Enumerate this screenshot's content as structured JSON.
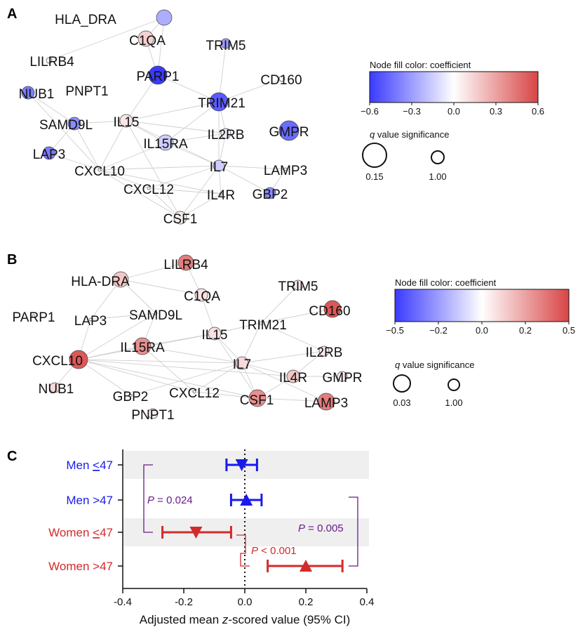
{
  "chart_data": [
    {
      "panel": "A",
      "type": "network",
      "legend": {
        "color_title": "Node fill color: coefficient",
        "color_ticks": [
          "−0.6",
          "−0.3",
          "0.0",
          "0.3",
          "0.6"
        ],
        "color_range": [
          -0.6,
          0.6
        ],
        "size_title": "value significance",
        "size_title_italic": "q",
        "size_ticks": [
          "0.15",
          "1.00"
        ]
      },
      "nodes": [
        {
          "label": "HLA_DRA",
          "coef": -0.25
        },
        {
          "label": "C1QA",
          "coef": 0.15
        },
        {
          "label": "TRIM5",
          "coef": -0.3
        },
        {
          "label": "LILRB4",
          "coef": 0.02
        },
        {
          "label": "PARP1",
          "coef": -0.6
        },
        {
          "label": "CD160",
          "coef": 0.02
        },
        {
          "label": "NUB1",
          "coef": -0.4
        },
        {
          "label": "PNPT1",
          "coef": 0.0
        },
        {
          "label": "TRIM21",
          "coef": -0.5
        },
        {
          "label": "SAMD9L",
          "coef": -0.35
        },
        {
          "label": "IL15",
          "coef": 0.08
        },
        {
          "label": "IL2RB",
          "coef": -0.05
        },
        {
          "label": "GMPR",
          "coef": -0.45
        },
        {
          "label": "IL15RA",
          "coef": -0.15
        },
        {
          "label": "LAP3",
          "coef": -0.4
        },
        {
          "label": "CXCL10",
          "coef": 0.0
        },
        {
          "label": "IL7",
          "coef": -0.15
        },
        {
          "label": "LAMP3",
          "coef": 0.0
        },
        {
          "label": "CXCL12",
          "coef": 0.0
        },
        {
          "label": "IL4R",
          "coef": 0.0
        },
        {
          "label": "GBP2",
          "coef": -0.35
        },
        {
          "label": "CSF1",
          "coef": 0.05
        }
      ]
    },
    {
      "panel": "B",
      "type": "network",
      "legend": {
        "color_title": "Node fill color: coefficient",
        "color_ticks": [
          "−0.5",
          "−0.2",
          "0.0",
          "0.2",
          "0.5"
        ],
        "color_range": [
          -0.5,
          0.5
        ],
        "size_title": "value significance",
        "size_title_italic": "q",
        "size_ticks": [
          "0.03",
          "1.00"
        ]
      },
      "nodes": [
        {
          "label": "LILRB4",
          "coef": 0.35
        },
        {
          "label": "HLA-DRA",
          "coef": 0.15
        },
        {
          "label": "C1QA",
          "coef": 0.08
        },
        {
          "label": "TRIM5",
          "coef": 0.05
        },
        {
          "label": "CD160",
          "coef": 0.45
        },
        {
          "label": "PARP1",
          "coef": 0.0
        },
        {
          "label": "LAP3",
          "coef": 0.0
        },
        {
          "label": "SAMD9L",
          "coef": 0.0
        },
        {
          "label": "TRIM21",
          "coef": 0.0
        },
        {
          "label": "IL15",
          "coef": 0.08
        },
        {
          "label": "CXCL10",
          "coef": 0.45
        },
        {
          "label": "IL15RA",
          "coef": 0.3
        },
        {
          "label": "IL2RB",
          "coef": 0.05
        },
        {
          "label": "IL7",
          "coef": 0.1
        },
        {
          "label": "IL4R",
          "coef": 0.15
        },
        {
          "label": "GMPR",
          "coef": 0.05
        },
        {
          "label": "NUB1",
          "coef": 0.1
        },
        {
          "label": "GBP2",
          "coef": 0.05
        },
        {
          "label": "CXCL12",
          "coef": 0.0
        },
        {
          "label": "CSF1",
          "coef": 0.3
        },
        {
          "label": "LAMP3",
          "coef": 0.35
        },
        {
          "label": "PNPT1",
          "coef": 0.05
        }
      ]
    },
    {
      "panel": "C",
      "type": "forest",
      "xlabel_pre": "Adjusted mean ",
      "xlabel_italic": "z",
      "xlabel_post": "-scored value (95% CI)",
      "xlim": [
        -0.4,
        0.4
      ],
      "xticks": [
        "-0.4",
        "-0.2",
        "0.0",
        "0.2",
        "0.4"
      ],
      "xtick_values": [
        -0.4,
        -0.2,
        0.0,
        0.2,
        0.4
      ],
      "reference_line": 0.0,
      "rows": [
        {
          "label_pre": "Men ",
          "label_under": "<",
          "label_post": "47",
          "color": "#1a1aee",
          "mean": -0.01,
          "low": -0.06,
          "high": 0.04,
          "marker": "triangle-down",
          "shaded": true
        },
        {
          "label_pre": "Men >47",
          "label_under": "",
          "label_post": "",
          "color": "#1a1aee",
          "mean": 0.005,
          "low": -0.045,
          "high": 0.055,
          "marker": "triangle-up",
          "shaded": false
        },
        {
          "label_pre": "Women ",
          "label_under": "<",
          "label_post": "47",
          "color": "#d42a2a",
          "mean": -0.16,
          "low": -0.27,
          "high": -0.045,
          "marker": "triangle-down",
          "shaded": true
        },
        {
          "label_pre": "Women >47",
          "label_under": "",
          "label_post": "",
          "color": "#d42a2a",
          "mean": 0.2,
          "low": 0.075,
          "high": 0.32,
          "marker": "triangle-up",
          "shaded": false
        }
      ],
      "comparisons": [
        {
          "label_italic": "P",
          "label_rest": " = 0.024",
          "color": "#6a1a8a"
        },
        {
          "label_italic": "P",
          "label_rest": " = 0.005",
          "color": "#6a1a8a"
        },
        {
          "label_italic": "P",
          "label_rest": " < 0.001",
          "color": "#d42a2a"
        }
      ]
    }
  ],
  "panel_labels": {
    "a": "A",
    "b": "B",
    "c": "C"
  }
}
